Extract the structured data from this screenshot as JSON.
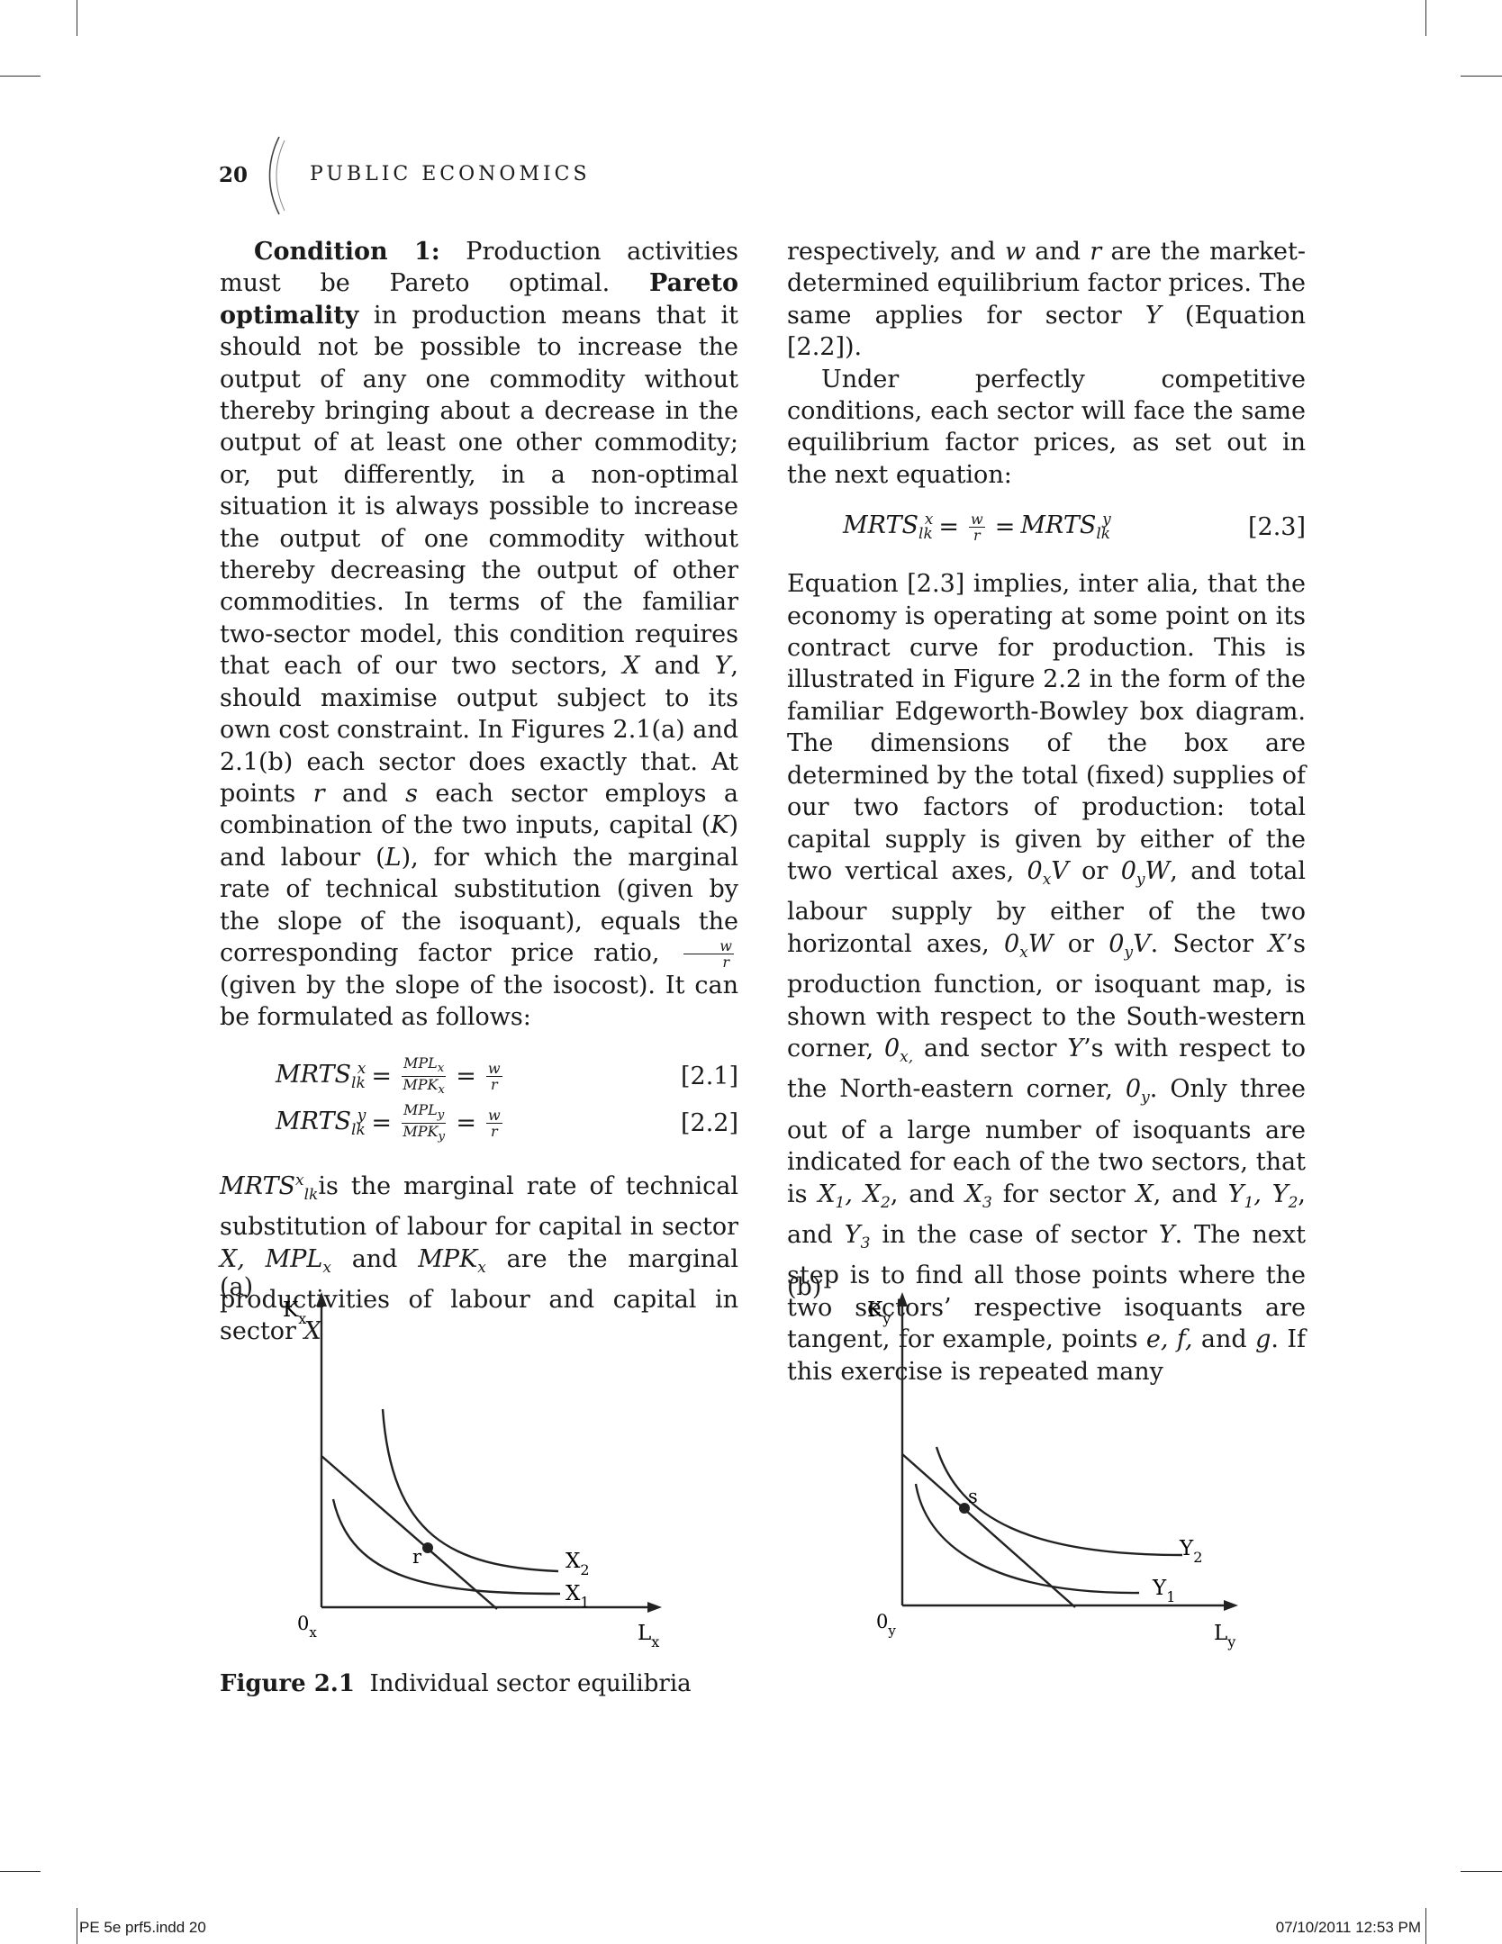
{
  "header": {
    "page_number": "20",
    "running_title": "PUBLIC ECONOMICS"
  },
  "left_column": {
    "para1_label": "Condition 1:",
    "para1_a": " Production activities must be Pareto optimal. ",
    "para1_term": "Pareto optimality",
    "para1_b": " in production means that it should not be possible to increase the output of any one commodity without thereby bringing about a decrease in the output of at least one other commodity; or, put differently, in a non-optimal situation it is always possible to increase the output of one commodity without thereby decreasing the output of other commodities. In terms of the familiar two-sector model, this condition requires that each of our two sectors, ",
    "para1_x": "X",
    "para1_and": " and ",
    "para1_y": "Y",
    "para1_c": ", should maximise output subject to its own cost constraint. In Figures 2.1(a) and 2.1(b) each sector does exactly that. At points ",
    "para1_r": "r",
    "para1_and2": " and ",
    "para1_s": "s",
    "para1_d": " each sector employs a combination of the two inputs, capital (",
    "para1_K": "K",
    "para1_e": ") and labour (",
    "para1_L": "L",
    "para1_f": "), for which the marginal rate of technical substitution (given by the slope of the isoquant), equals the corresponding factor price ratio, ",
    "para1_g": " (given by the slope of the isocost). It can be formulated as follows:",
    "eq1_label": "[2.1]",
    "eq2_label": "[2.2]",
    "para2_a": "is the marginal rate of technical substitution of labour for capital in sector ",
    "para2_X": "X,",
    "para2_b": " and ",
    "para2_c": " are the marginal productivities of labour and capital in sector ",
    "para2_X2": "X"
  },
  "right_column": {
    "para1_a": "respectively, and ",
    "para1_w": "w",
    "para1_b": " and ",
    "para1_r": "r",
    "para1_c": " are the market-determined equilibrium factor prices. The same applies for sector ",
    "para1_Y": "Y",
    "para1_d": " (Equation [2.2]).",
    "para2": "Under perfectly competitive conditions, each sector will face the same equilibrium factor prices, as set out in the next equation:",
    "eq3_label": "[2.3]",
    "para3_a": "Equation [2.3] implies, inter alia, that the economy is operating at some point on its contract curve for production. This is illustrated in Figure 2.2 in the form of the familiar Edgeworth-Bowley box diagram. The dimensions of the box are determined by the total (fixed) supplies of our two factors of production: total capital supply is given by either of the two vertical axes, ",
    "para3_b": " or ",
    "para3_c": ", and total labour supply by either of the two horizontal axes, ",
    "para3_d": " or ",
    "para3_e": ". Sector ",
    "para3_X": "X",
    "para3_f": "’s production function, or isoquant map, is shown with respect to the South-western corner, ",
    "para3_g": " and sector ",
    "para3_Y": "Y",
    "para3_h": "’s with respect to the North-eastern corner, ",
    "para3_i": ". Only three out of a large number of isoquants are indicated for each of the two sectors, that is ",
    "para3_j": ", and ",
    "para3_k": " for sector ",
    "para3_X2": "X",
    "para3_l": ", and ",
    "para3_m": ", and ",
    "para3_n": " in the case of sector ",
    "para3_Y2": "Y",
    "para3_o": ". The next step is to find all those points where the two sectors’ respective isoquants are tangent, for example, points ",
    "para3_efg": "e, f,",
    "para3_p": " and ",
    "para3_g2": "g",
    "para3_q": ". If this exercise is repeated many"
  },
  "figure": {
    "panel_a_label": "(a)",
    "panel_b_label": "(b)",
    "a_y_axis": "K",
    "a_y_sub": "x",
    "a_x_axis": "L",
    "a_x_sub": "x",
    "a_origin": "0",
    "a_origin_sub": "x",
    "a_point": "r",
    "a_curve_upper": "X",
    "a_curve_upper_sub": "2",
    "a_curve_lower": "X",
    "a_curve_lower_sub": "1",
    "b_y_axis": "K",
    "b_y_sub": "y",
    "b_x_axis": "L",
    "b_x_sub": "y",
    "b_origin": "0",
    "b_origin_sub": "y",
    "b_point": "s",
    "b_curve_upper": "Y",
    "b_curve_upper_sub": "2",
    "b_curve_lower": "Y",
    "b_curve_lower_sub": "1",
    "caption_label": "Figure 2.1",
    "caption_text": "Individual sector equilibria"
  },
  "footer": {
    "file": "PE 5e prf5.indd   20",
    "date": "07/10/2011   12:53 PM"
  }
}
